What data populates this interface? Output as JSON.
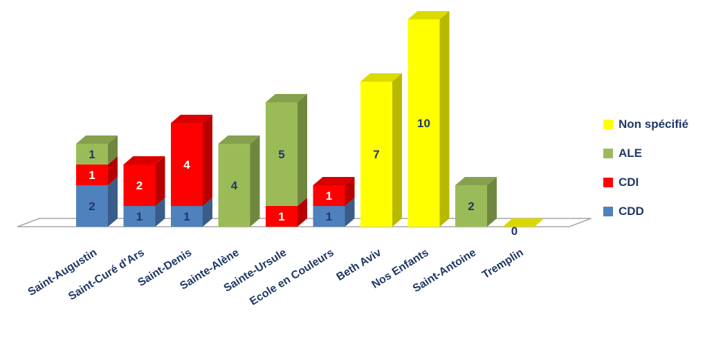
{
  "chart_data": {
    "type": "bar",
    "stacked": true,
    "three_d": true,
    "title": "",
    "xlabel": "",
    "ylabel": "",
    "ylim": [
      0,
      10
    ],
    "grid": false,
    "legend_position": "right",
    "categories": [
      "Saint-Augustin",
      "Saint-Curé d'Ars",
      "Saint-Denis",
      "Sainte-Alène",
      "Sainte-Ursule",
      "Ecole en Couleurs",
      "Beth Aviv",
      "Nos Enfants",
      "Saint-Antoine",
      "Tremplin"
    ],
    "series": [
      {
        "name": "CDD",
        "color": "#4f81bd",
        "values": [
          2,
          1,
          1,
          0,
          0,
          1,
          0,
          0,
          0,
          0
        ]
      },
      {
        "name": "CDI",
        "color": "#ff0000",
        "values": [
          1,
          2,
          4,
          0,
          1,
          1,
          0,
          0,
          0,
          0
        ]
      },
      {
        "name": "ALE",
        "color": "#9bbb59",
        "values": [
          1,
          0,
          0,
          4,
          5,
          0,
          0,
          0,
          2,
          0
        ]
      },
      {
        "name": "Non spécifié",
        "color": "#ffff00",
        "values": [
          0,
          0,
          0,
          0,
          0,
          0,
          7,
          10,
          0,
          0
        ]
      }
    ],
    "data_label_color": "#1f3864"
  },
  "legend": {
    "items": [
      {
        "label": "Non spécifié",
        "color": "#ffff00"
      },
      {
        "label": "ALE",
        "color": "#9bbb59"
      },
      {
        "label": "CDI",
        "color": "#ff0000"
      },
      {
        "label": "CDD",
        "color": "#4f81bd"
      }
    ]
  }
}
